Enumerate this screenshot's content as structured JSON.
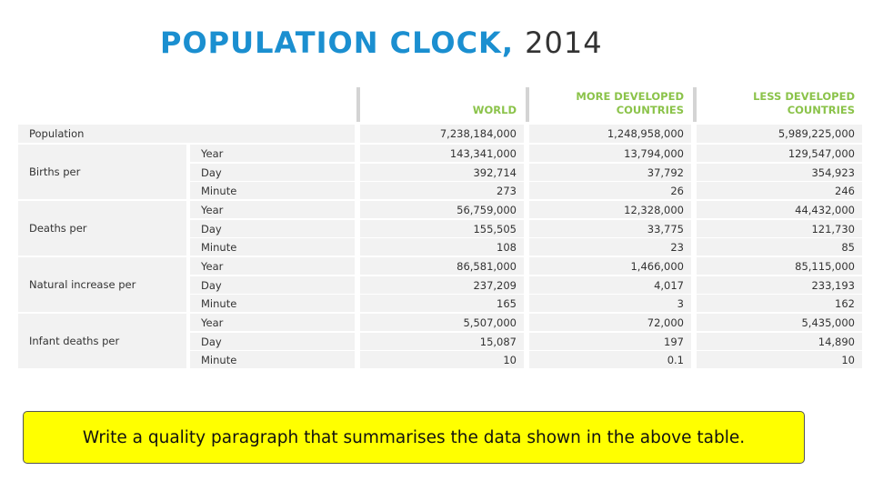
{
  "title": {
    "main": "POPULATION CLOCK,",
    "year": "2014"
  },
  "table": {
    "headers": {
      "world": [
        "WORLD"
      ],
      "more": [
        "MORE DEVELOPED",
        "COUNTRIES"
      ],
      "less": [
        "LESS DEVELOPED",
        "COUNTRIES"
      ]
    },
    "population": {
      "label": "Population",
      "world": "7,238,184,000",
      "more": "1,248,958,000",
      "less": "5,989,225,000"
    },
    "groups": [
      {
        "label": "Births per",
        "rows": [
          {
            "unit": "Year",
            "world": "143,341,000",
            "more": "13,794,000",
            "less": "129,547,000"
          },
          {
            "unit": "Day",
            "world": "392,714",
            "more": "37,792",
            "less": "354,923"
          },
          {
            "unit": "Minute",
            "world": "273",
            "more": "26",
            "less": "246"
          }
        ]
      },
      {
        "label": "Deaths per",
        "rows": [
          {
            "unit": "Year",
            "world": "56,759,000",
            "more": "12,328,000",
            "less": "44,432,000"
          },
          {
            "unit": "Day",
            "world": "155,505",
            "more": "33,775",
            "less": "121,730"
          },
          {
            "unit": "Minute",
            "world": "108",
            "more": "23",
            "less": "85"
          }
        ]
      },
      {
        "label": "Natural increase per",
        "rows": [
          {
            "unit": "Year",
            "world": "86,581,000",
            "more": "1,466,000",
            "less": "85,115,000"
          },
          {
            "unit": "Day",
            "world": "237,209",
            "more": "4,017",
            "less": "233,193"
          },
          {
            "unit": "Minute",
            "world": "165",
            "more": "3",
            "less": "162"
          }
        ]
      },
      {
        "label": "Infant deaths per",
        "rows": [
          {
            "unit": "Year",
            "world": "5,507,000",
            "more": "72,000",
            "less": "5,435,000"
          },
          {
            "unit": "Day",
            "world": "15,087",
            "more": "197",
            "less": "14,890"
          },
          {
            "unit": "Minute",
            "world": "10",
            "more": "0.1",
            "less": "10"
          }
        ]
      }
    ]
  },
  "prompt": "Write a quality paragraph that summarises the data shown in the above table."
}
